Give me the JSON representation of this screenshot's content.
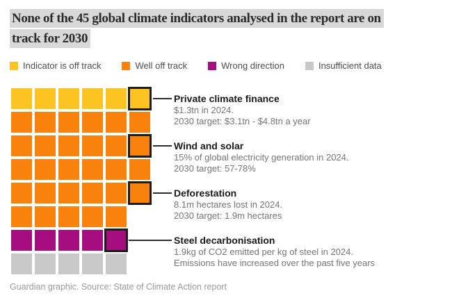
{
  "page": {
    "title_lines": [
      "None of the 45 global climate indicators analysed in the report are on",
      "track for 2030"
    ],
    "footer": "Guardian graphic. Source: State of Climate Action report"
  },
  "colors": {
    "off_track": "#fdc321",
    "well_off_track": "#f8820b",
    "wrong_direction": "#a60d7e",
    "insufficient_data": "#c8c8c8",
    "highlight_border": "#1c1c1c",
    "title_highlight_bg": "#d8d8d8",
    "connector": "#2b2b2b"
  },
  "chart_data": {
    "type": "waffle",
    "title": "None of the 45 global climate indicators analysed in the report are on track for 2030",
    "total_indicators": 45,
    "legend_position": "top",
    "legend": [
      {
        "label": "Indicator is off track",
        "color_key": "off_track",
        "count": 6
      },
      {
        "label": "Well off track",
        "color_key": "well_off_track",
        "count": 29
      },
      {
        "label": "Wrong direction",
        "color_key": "wrong_direction",
        "count": 5
      },
      {
        "label": "Insufficient data",
        "color_key": "insufficient_data",
        "count": 5
      }
    ],
    "grid_rows": [
      {
        "color_key": "off_track",
        "cells": 6,
        "highlight_cell": 6
      },
      {
        "color_key": "well_off_track",
        "cells": 6,
        "highlight_cell": null
      },
      {
        "color_key": "well_off_track",
        "cells": 6,
        "highlight_cell": 6
      },
      {
        "color_key": "well_off_track",
        "cells": 6,
        "highlight_cell": null
      },
      {
        "color_key": "well_off_track",
        "cells": 6,
        "highlight_cell": 6
      },
      {
        "color_key": "well_off_track",
        "cells": 5,
        "highlight_cell": null
      },
      {
        "color_key": "wrong_direction",
        "cells": 5,
        "highlight_cell": 5
      },
      {
        "color_key": "insufficient_data",
        "cells": 5,
        "highlight_cell": null
      }
    ],
    "annotations": [
      {
        "title": "Private climate finance",
        "detail": "$1.3tn in 2024.",
        "target": "2030 target: $3.1tn - $4.8tn a year"
      },
      {
        "title": "Wind and solar",
        "detail": "15% of global electricity generation in 2024.",
        "target": "2030 target: 57-78%"
      },
      {
        "title": "Deforestation",
        "detail": "8.1m hectares lost in 2024.",
        "target": "2030 target: 1.9m hectares"
      },
      {
        "title": "Steel decarbonisation",
        "detail": "1.9kg of CO2 emitted per kg of steel in 2024.",
        "target": "Emissions have increased over the past five years"
      }
    ]
  }
}
